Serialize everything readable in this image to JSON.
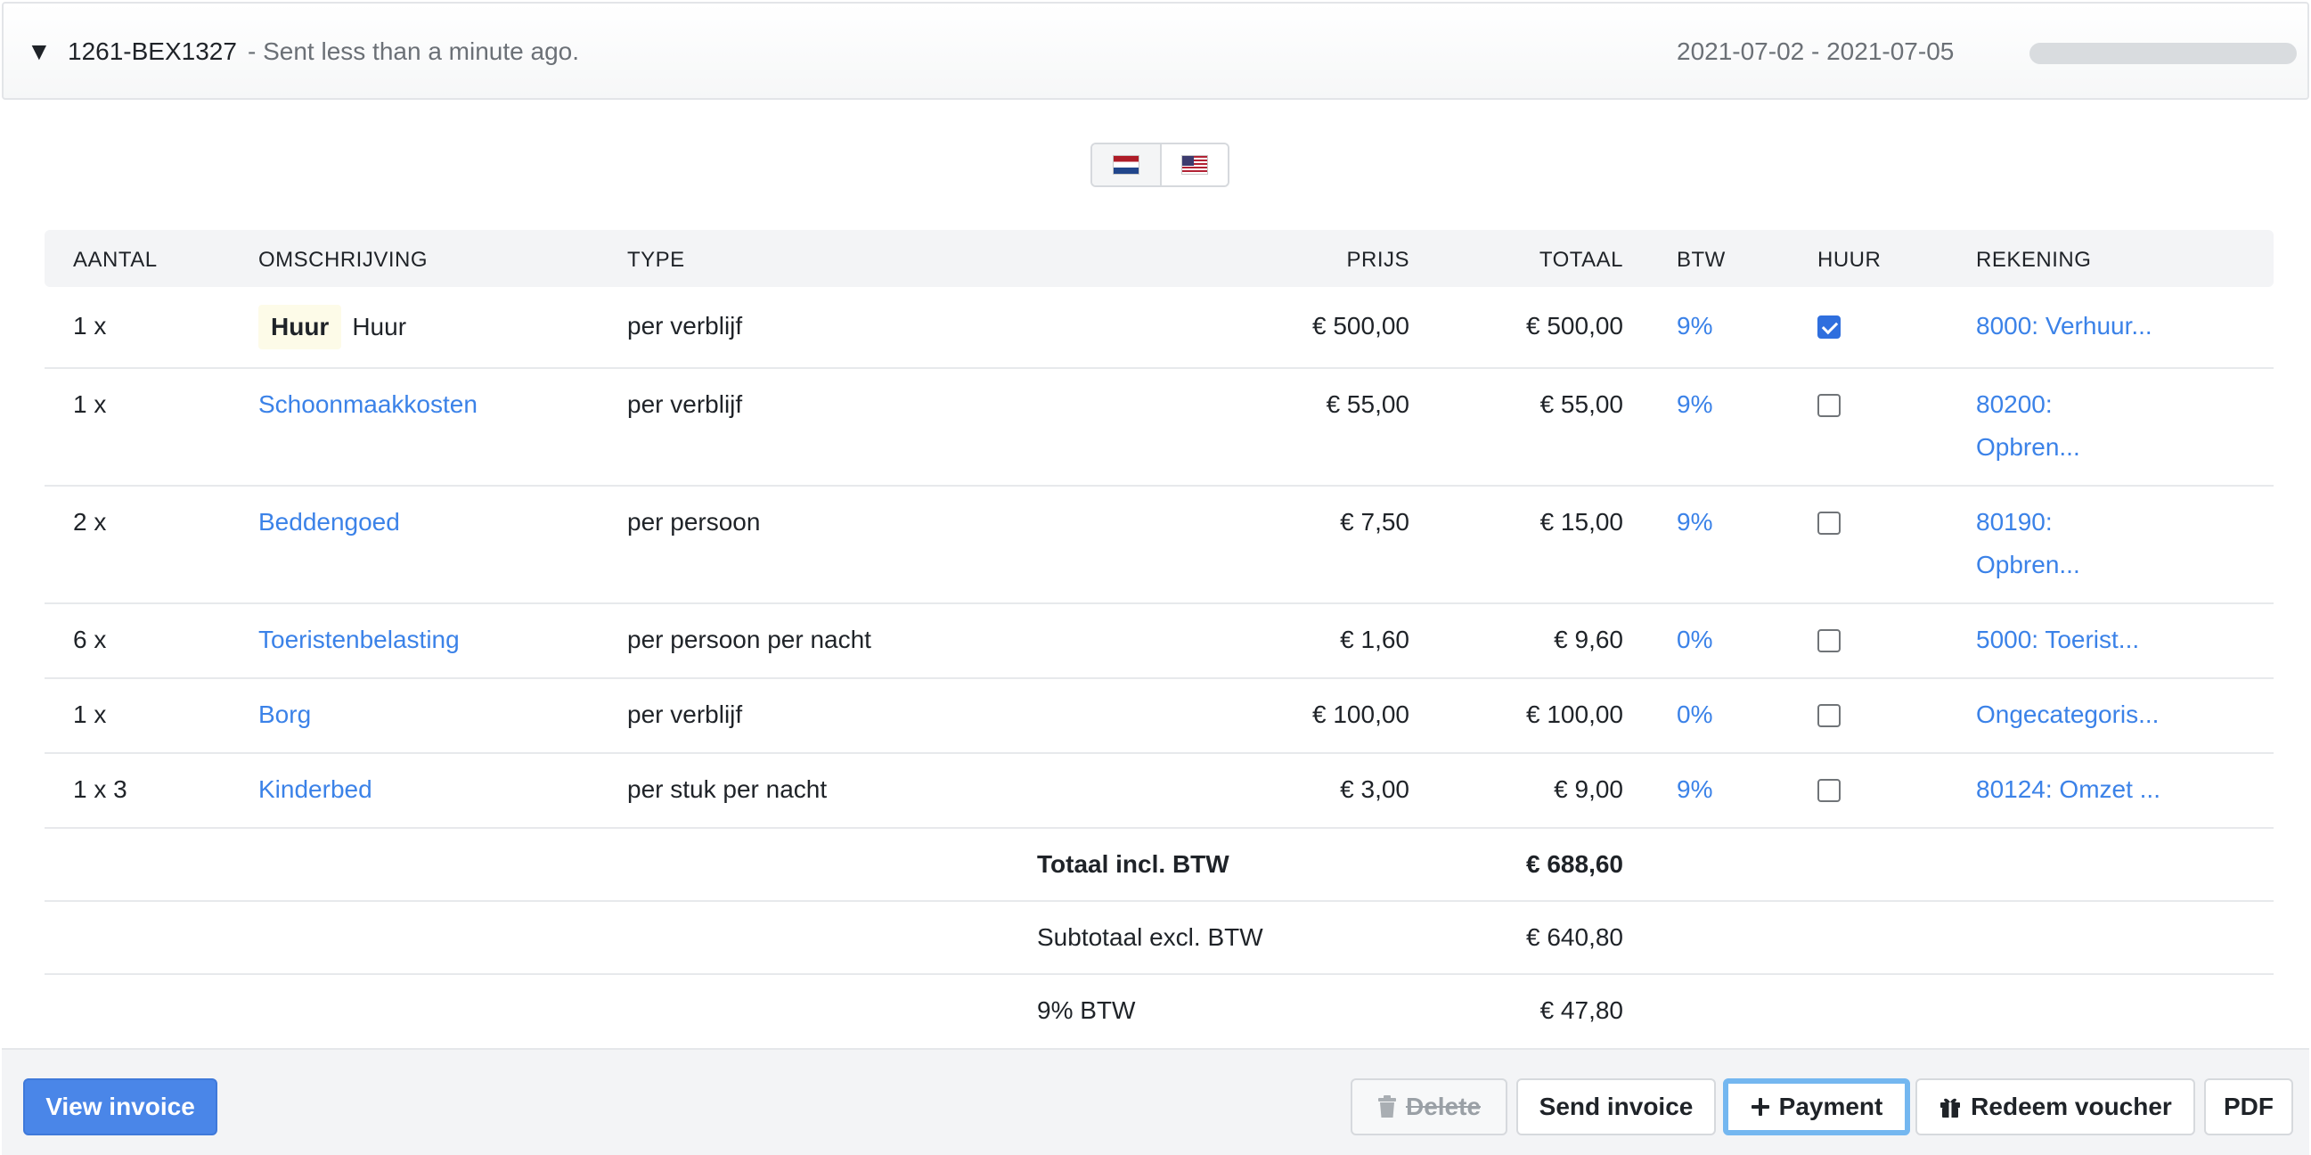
{
  "header": {
    "caret": "▼",
    "reference": "1261-BEX1327",
    "sent_text": "- Sent less than a minute ago.",
    "dates": "2021-07-02 - 2021-07-05",
    "progress": 0
  },
  "languages": [
    {
      "code": "nl",
      "icon": "flag-nl-icon"
    },
    {
      "code": "en-us",
      "icon": "flag-us-icon"
    }
  ],
  "table": {
    "columns": [
      "AANTAL",
      "OMSCHRIJVING",
      "TYPE",
      "PRIJS",
      "TOTAAL",
      "BTW",
      "HUUR",
      "REKENING"
    ],
    "rows": [
      {
        "qty": "1 x",
        "badge": "Huur",
        "desc": "Huur",
        "desc_link": false,
        "type": "per verblijf",
        "price": "€ 500,00",
        "total": "€ 500,00",
        "btw": "9%",
        "huur": true,
        "account": "8000: Verhuur..."
      },
      {
        "qty": "1 x",
        "badge": "",
        "desc": "Schoonmaakkosten",
        "desc_link": true,
        "type": "per verblijf",
        "price": "€ 55,00",
        "total": "€ 55,00",
        "btw": "9%",
        "huur": false,
        "account": "80200: Opbren..."
      },
      {
        "qty": "2 x",
        "badge": "",
        "desc": "Beddengoed",
        "desc_link": true,
        "type": "per persoon",
        "price": "€ 7,50",
        "total": "€ 15,00",
        "btw": "9%",
        "huur": false,
        "account": "80190: Opbren..."
      },
      {
        "qty": "6 x",
        "badge": "",
        "desc": "Toeristenbelasting",
        "desc_link": true,
        "type": "per persoon per nacht",
        "price": "€ 1,60",
        "total": "€ 9,60",
        "btw": "0%",
        "huur": false,
        "account": "5000: Toerist..."
      },
      {
        "qty": "1 x",
        "badge": "",
        "desc": "Borg",
        "desc_link": true,
        "type": "per verblijf",
        "price": "€ 100,00",
        "total": "€ 100,00",
        "btw": "0%",
        "huur": false,
        "account": "Ongecategoris..."
      },
      {
        "qty": "1 x 3",
        "badge": "",
        "desc": "Kinderbed",
        "desc_link": true,
        "type": "per stuk per nacht",
        "price": "€ 3,00",
        "total": "€ 9,00",
        "btw": "9%",
        "huur": false,
        "account": "80124: Omzet ..."
      }
    ],
    "summary": [
      {
        "label": "Totaal incl. BTW",
        "value": "€ 688,60",
        "bold": true
      },
      {
        "label": "Subtotaal excl. BTW",
        "value": "€ 640,80",
        "bold": false
      },
      {
        "label": "9% BTW",
        "value": "€ 47,80",
        "bold": false
      }
    ]
  },
  "footer": {
    "view_invoice": "View invoice",
    "delete": "Delete",
    "send_invoice": "Send invoice",
    "payment": "Payment",
    "redeem_voucher": "Redeem voucher",
    "pdf": "PDF"
  },
  "colors": {
    "accent": "#3b82e8",
    "primary_button": "#4a86e8",
    "focus_ring": "#74b7f0"
  }
}
